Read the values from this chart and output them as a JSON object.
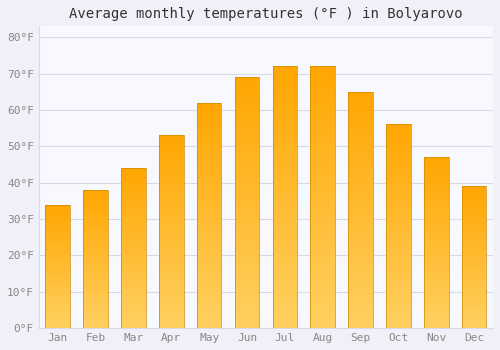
{
  "title": "Average monthly temperatures (°F ) in Bolyarovo",
  "months": [
    "Jan",
    "Feb",
    "Mar",
    "Apr",
    "May",
    "Jun",
    "Jul",
    "Aug",
    "Sep",
    "Oct",
    "Nov",
    "Dec"
  ],
  "values": [
    34,
    38,
    44,
    53,
    62,
    69,
    72,
    72,
    65,
    56,
    47,
    39
  ],
  "bar_color": "#FFA500",
  "bar_color_light": "#FFD060",
  "bar_edge_color": "#CC8800",
  "ylim": [
    0,
    83
  ],
  "yticks": [
    0,
    10,
    20,
    30,
    40,
    50,
    60,
    70,
    80
  ],
  "ytick_labels": [
    "0°F",
    "10°F",
    "20°F",
    "30°F",
    "40°F",
    "50°F",
    "60°F",
    "70°F",
    "80°F"
  ],
  "background_color": "#f0f0f8",
  "plot_bg_color": "#f8f8ff",
  "grid_color": "#d8d8e8",
  "title_fontsize": 10,
  "tick_fontsize": 8,
  "font_family": "monospace"
}
